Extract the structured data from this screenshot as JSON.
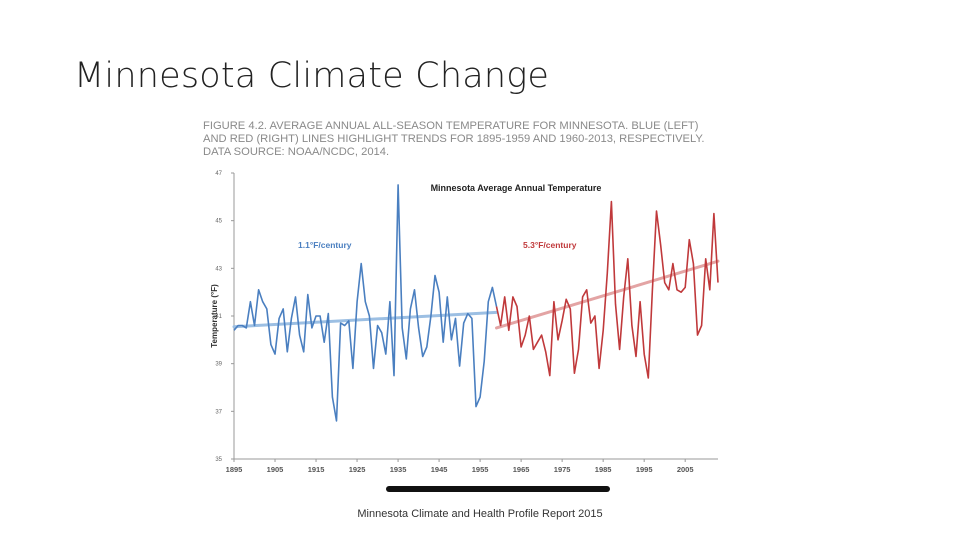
{
  "slide": {
    "title": "Minnesota Climate Change",
    "caption": "FIGURE 4.2. AVERAGE ANNUAL ALL-SEASON TEMPERATURE FOR MINNESOTA. BLUE (LEFT) AND RED (RIGHT) LINES HIGHLIGHT TRENDS FOR 1895-1959 AND 1960-2013, RESPECTIVELY. DATA SOURCE: NOAA/NCDC, 2014.",
    "footer": "Minnesota Climate and Health Profile Report 2015"
  },
  "chart_data": {
    "type": "line",
    "title": "Minnesota Average Annual Temperature",
    "xlabel": "",
    "ylabel": "Temperature (°F)",
    "xlim": [
      1895,
      2013
    ],
    "ylim": [
      35,
      47
    ],
    "yticks": [
      35,
      37,
      39,
      41,
      43,
      45,
      47
    ],
    "xticks": [
      1895,
      1905,
      1915,
      1925,
      1935,
      1945,
      1955,
      1965,
      1975,
      1985,
      1995,
      2005
    ],
    "grid": false,
    "colors": {
      "early": "#4a7fc0",
      "late": "#c0393b",
      "early_trend": "#9cbfe3",
      "late_trend": "#e3a4a4"
    },
    "series": [
      {
        "x": [
          1895,
          1896,
          1897,
          1898,
          1899,
          1900,
          1901,
          1902,
          1903,
          1904,
          1905,
          1906,
          1907,
          1908,
          1909,
          1910,
          1911,
          1912,
          1913,
          1914,
          1915,
          1916,
          1917,
          1918,
          1919,
          1920,
          1921,
          1922,
          1923,
          1924,
          1925,
          1926,
          1927,
          1928,
          1929,
          1930,
          1931,
          1932,
          1933,
          1934,
          1935,
          1936,
          1937,
          1938,
          1939,
          1940,
          1941,
          1942,
          1943,
          1944,
          1945,
          1946,
          1947,
          1948,
          1949,
          1950,
          1951,
          1952,
          1953,
          1954,
          1955,
          1956,
          1957,
          1958,
          1959
        ],
        "values": [
          40.4,
          40.6,
          40.6,
          40.5,
          41.6,
          40.6,
          42.1,
          41.6,
          41.3,
          39.8,
          39.4,
          40.9,
          41.3,
          39.5,
          40.9,
          41.8,
          40.2,
          39.5,
          41.9,
          40.5,
          41.0,
          41.0,
          39.9,
          41.1,
          37.6,
          36.6,
          40.7,
          40.6,
          40.8,
          38.8,
          41.6,
          43.2,
          41.6,
          41.0,
          38.8,
          40.6,
          40.3,
          39.4,
          41.6,
          38.5,
          46.5,
          40.5,
          39.2,
          41.3,
          42.1,
          40.5,
          39.3,
          39.7,
          41.0,
          42.7,
          42.0,
          39.9,
          41.8,
          40.0,
          40.9,
          38.9,
          40.7,
          41.1,
          40.9,
          37.2,
          37.6,
          39.1,
          41.6,
          42.2,
          41.4
        ],
        "trend": [
          40.55,
          41.15
        ]
      },
      {
        "x": [
          1959,
          1960,
          1961,
          1962,
          1963,
          1964,
          1965,
          1966,
          1967,
          1968,
          1969,
          1970,
          1971,
          1972,
          1973,
          1974,
          1975,
          1976,
          1977,
          1978,
          1979,
          1980,
          1981,
          1982,
          1983,
          1984,
          1985,
          1986,
          1987,
          1988,
          1989,
          1990,
          1991,
          1992,
          1993,
          1994,
          1995,
          1996,
          1997,
          1998,
          1999,
          2000,
          2001,
          2002,
          2003,
          2004,
          2005,
          2006,
          2007,
          2008,
          2009,
          2010,
          2011,
          2012,
          2013
        ],
        "values": [
          41.4,
          40.6,
          41.8,
          40.4,
          41.8,
          41.4,
          39.7,
          40.2,
          41.0,
          39.6,
          39.9,
          40.2,
          39.5,
          38.5,
          41.6,
          40.0,
          40.8,
          41.7,
          41.3,
          38.6,
          39.6,
          41.8,
          42.1,
          40.7,
          41.0,
          38.8,
          40.4,
          42.8,
          45.8,
          41.5,
          39.6,
          41.8,
          43.4,
          40.6,
          39.3,
          41.6,
          39.4,
          38.4,
          42.1,
          45.4,
          44.0,
          42.4,
          42.1,
          43.2,
          42.1,
          42.0,
          42.2,
          44.2,
          43.2,
          40.2,
          40.6,
          43.4,
          42.1,
          45.3,
          42.4
        ],
        "trend": [
          40.5,
          43.3
        ]
      }
    ],
    "annotations": [
      "1.1°F/century",
      "5.3°F/century"
    ]
  }
}
